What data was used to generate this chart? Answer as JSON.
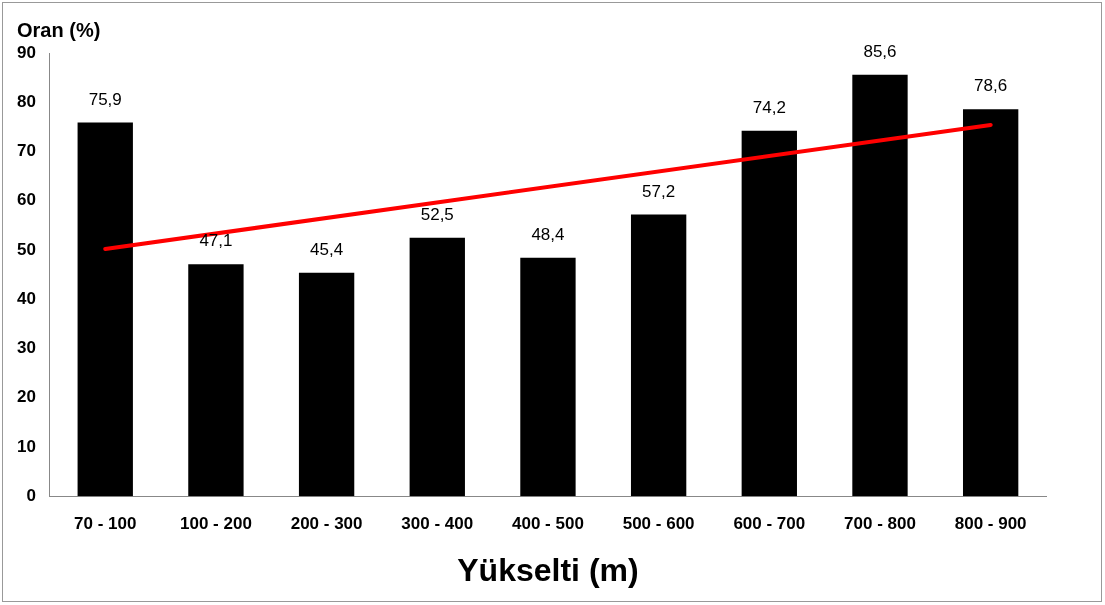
{
  "chart_data": {
    "type": "bar",
    "ylabel": "Oran (%)",
    "xlabel": "Yükselti (m)",
    "categories": [
      "70 - 100",
      "100 - 200",
      "200 - 300",
      "300 - 400",
      "400 - 500",
      "500 - 600",
      "600 - 700",
      "700 - 800",
      "800 - 900"
    ],
    "series": [
      {
        "color": "#000000",
        "values": [
          75.9,
          47.1,
          45.4,
          52.5,
          48.4,
          57.2,
          74.2,
          85.6,
          78.6
        ],
        "value_labels": [
          "75,9",
          "47,1",
          "45,4",
          "52,5",
          "48,4",
          "57,2",
          "74,2",
          "85,6",
          "78,6"
        ]
      },
      {
        "type": "line",
        "color": "#ff0000",
        "x": [
          "70 - 100",
          "800 - 900"
        ],
        "values": [
          50.2,
          75.4
        ]
      }
    ],
    "ylim": [
      0,
      90
    ],
    "yticks": [
      0,
      10,
      20,
      30,
      40,
      50,
      60,
      70,
      80,
      90
    ],
    "grid": false,
    "legend": false,
    "marker": "none",
    "line_style": "solid"
  }
}
